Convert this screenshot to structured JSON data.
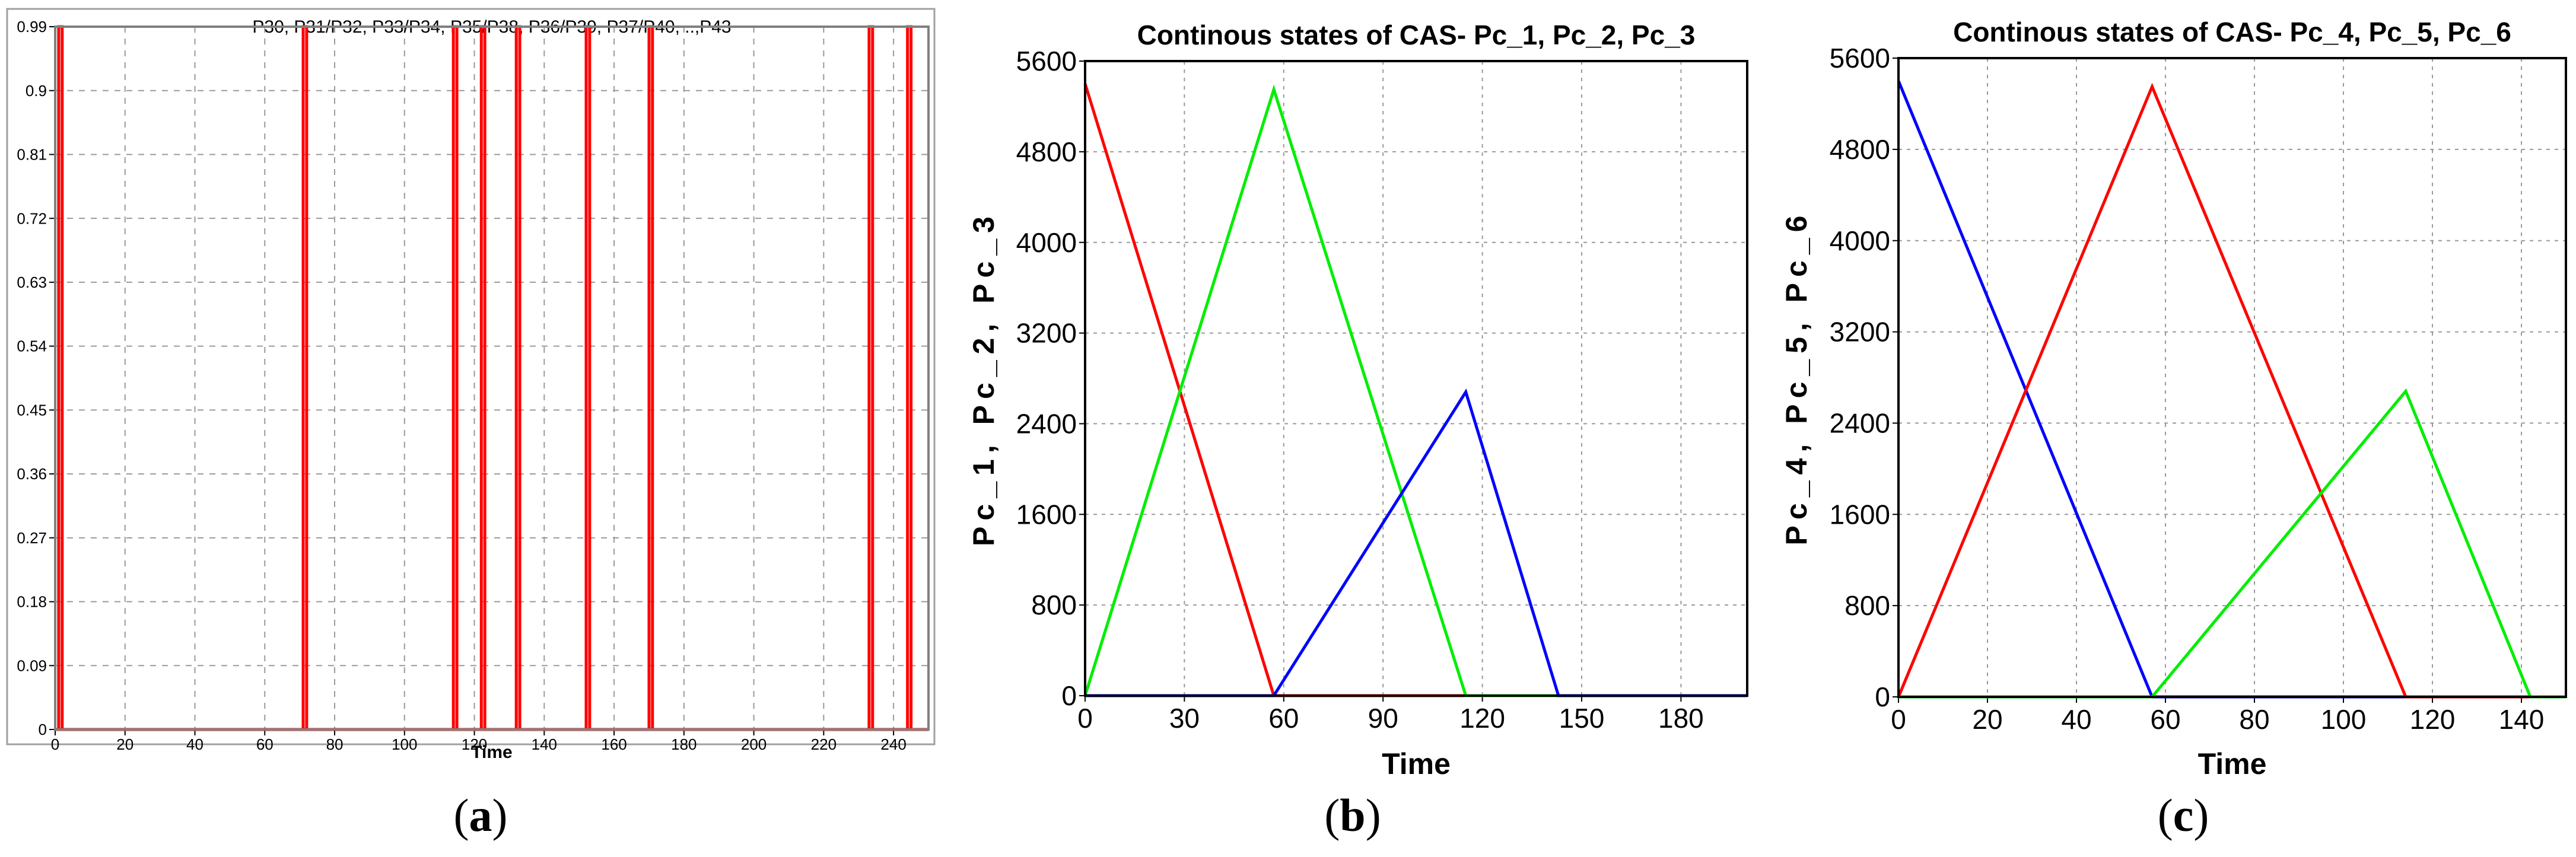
{
  "figure": {
    "captions": [
      {
        "open": "(",
        "letter": "a",
        "close": ")"
      },
      {
        "open": "(",
        "letter": "b",
        "close": ")"
      },
      {
        "open": "(",
        "letter": "c",
        "close": ")"
      }
    ]
  },
  "chart_data": [
    {
      "type": "line",
      "title": "P30, P31/P32, P33/P34, P35/P38, P36/P39, P37/P40, ..,P43",
      "xlabel": "Time",
      "ylabel": "",
      "xlim": [
        0,
        250
      ],
      "ylim": [
        0,
        0.99
      ],
      "xticks": [
        0,
        20,
        40,
        60,
        80,
        100,
        120,
        140,
        160,
        180,
        200,
        220,
        240
      ],
      "yticks": [
        0,
        0.09,
        0.18,
        0.27,
        0.36,
        0.45,
        0.54,
        0.63,
        0.72,
        0.81,
        0.9,
        0.99
      ],
      "grid": true,
      "colors": {
        "series": "#ff0000",
        "frame": "#808080",
        "grid": "#9a9a9a"
      },
      "pulse_width": 1,
      "pulses": [
        1,
        71,
        114,
        122,
        132,
        152,
        170,
        233,
        244
      ],
      "series": [
        {
          "name": "",
          "color": "#ff0000"
        }
      ]
    },
    {
      "type": "line",
      "title": "Continous states of CAS- Pc_1, Pc_2, Pc_3",
      "xlabel": "Time",
      "ylabel": "Pc_1, Pc_2, Pc_3",
      "xlim": [
        0,
        200
      ],
      "ylim": [
        0,
        5600
      ],
      "xticks": [
        0,
        30,
        60,
        90,
        120,
        150,
        180
      ],
      "yticks": [
        0,
        800,
        1600,
        2400,
        3200,
        4000,
        4800,
        5600
      ],
      "grid": true,
      "series": [
        {
          "name": "",
          "color": "#ff0000",
          "points": [
            [
              0,
              5400
            ],
            [
              57,
              0
            ],
            [
              200,
              0
            ]
          ]
        },
        {
          "name": "",
          "color": "#00ee00",
          "points": [
            [
              0,
              0
            ],
            [
              57,
              5350
            ],
            [
              115,
              0
            ],
            [
              200,
              0
            ]
          ]
        },
        {
          "name": "",
          "color": "#0000ff",
          "points": [
            [
              0,
              0
            ],
            [
              57,
              0
            ],
            [
              115,
              2680
            ],
            [
              143,
              0
            ],
            [
              200,
              0
            ]
          ]
        }
      ]
    },
    {
      "type": "line",
      "title": "Continous states of CAS- Pc_4, Pc_5, Pc_6",
      "xlabel": "Time",
      "ylabel": "Pc_4, Pc_5, Pc_6",
      "xlim": [
        0,
        150
      ],
      "ylim": [
        0,
        5600
      ],
      "xticks": [
        0,
        20,
        40,
        60,
        80,
        100,
        120,
        140
      ],
      "yticks": [
        0,
        800,
        1600,
        2400,
        3200,
        4000,
        4800,
        5600
      ],
      "grid": true,
      "series": [
        {
          "name": "",
          "color": "#0000ff",
          "points": [
            [
              0,
              5400
            ],
            [
              57,
              0
            ],
            [
              150,
              0
            ]
          ]
        },
        {
          "name": "",
          "color": "#ff0000",
          "points": [
            [
              0,
              0
            ],
            [
              57,
              5350
            ],
            [
              114,
              0
            ],
            [
              150,
              0
            ]
          ]
        },
        {
          "name": "",
          "color": "#00ee00",
          "points": [
            [
              0,
              0
            ],
            [
              57,
              0
            ],
            [
              114,
              2680
            ],
            [
              142,
              0
            ],
            [
              150,
              0
            ]
          ]
        }
      ]
    }
  ]
}
